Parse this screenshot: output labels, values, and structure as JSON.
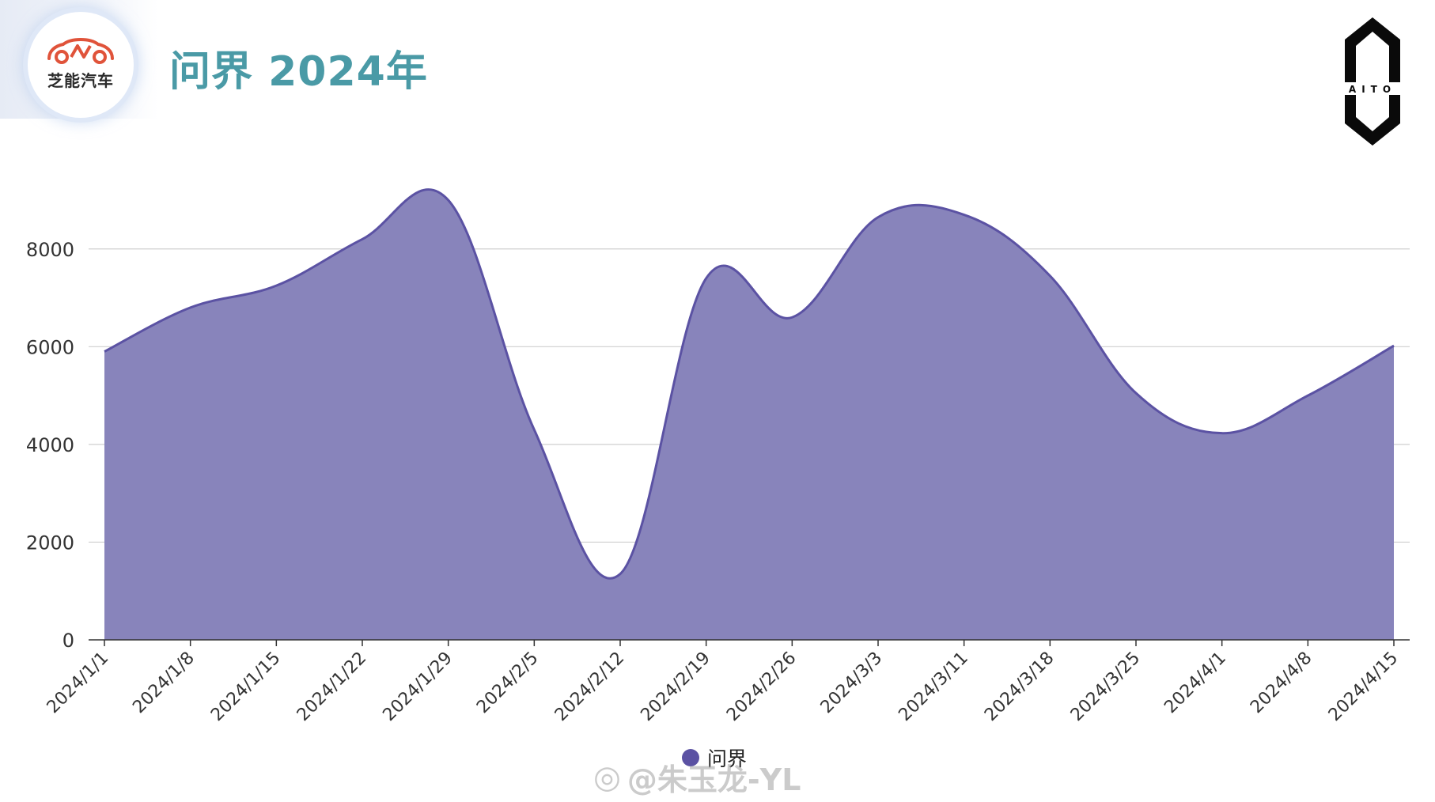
{
  "header": {
    "title": "问界 2024年",
    "brand_name": "芝能汽车"
  },
  "logos": {
    "aito_text": "AITO"
  },
  "watermark": {
    "text": "@朱玉龙-YL"
  },
  "colors": {
    "area_fill": "#8884bb",
    "line": "#5b52a3",
    "title": "#4a9aa6",
    "grid": "#cfcfcf",
    "brand_red": "#e0533a"
  },
  "chart_data": {
    "type": "area",
    "categories": [
      "2024/1/1",
      "2024/1/8",
      "2024/1/15",
      "2024/1/22",
      "2024/1/29",
      "2024/2/5",
      "2024/2/12",
      "2024/2/19",
      "2024/2/26",
      "2024/3/3",
      "2024/3/11",
      "2024/3/18",
      "2024/3/25",
      "2024/4/1",
      "2024/4/8",
      "2024/4/15"
    ],
    "series": [
      {
        "name": "问界",
        "values": [
          5900,
          6800,
          7250,
          8200,
          9000,
          4300,
          1350,
          7400,
          6600,
          8650,
          8700,
          7450,
          5050,
          4230,
          5000,
          6020
        ]
      }
    ],
    "ylim": [
      0,
      9000
    ],
    "yticks": [
      0,
      2000,
      4000,
      6000,
      8000
    ],
    "grid": true,
    "smooth": true,
    "legend_position": "bottom-center"
  }
}
